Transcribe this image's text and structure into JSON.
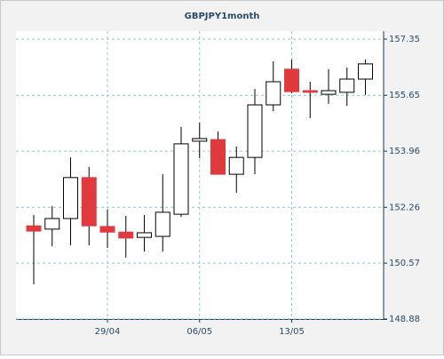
{
  "chart_data": {
    "type": "candlestick",
    "title": "GBPJPY1month",
    "categories": [
      null,
      null,
      null,
      null,
      "29/04",
      null,
      null,
      null,
      null,
      "06/05",
      null,
      null,
      null,
      null,
      "13/05",
      null,
      null,
      null,
      null
    ],
    "open": [
      151.7,
      151.6,
      151.92,
      153.16,
      151.68,
      151.51,
      151.35,
      151.38,
      152.05,
      154.26,
      154.31,
      153.26,
      153.77,
      155.36,
      156.44,
      155.79,
      155.68,
      155.74,
      156.14
    ],
    "high": [
      152.03,
      152.3,
      153.77,
      153.48,
      152.19,
      152.0,
      152.03,
      153.26,
      154.69,
      154.82,
      154.55,
      154.1,
      155.84,
      156.68,
      156.73,
      156.06,
      156.44,
      156.49,
      156.73
    ],
    "low": [
      149.93,
      151.08,
      151.11,
      151.11,
      151.03,
      150.74,
      150.92,
      150.92,
      151.97,
      153.75,
      153.26,
      152.7,
      153.26,
      155.17,
      155.71,
      154.96,
      155.39,
      155.33,
      155.66
    ],
    "close": [
      151.54,
      151.92,
      153.16,
      151.7,
      151.51,
      151.33,
      151.49,
      152.11,
      154.18,
      154.34,
      153.26,
      153.77,
      155.36,
      156.06,
      155.76,
      155.74,
      155.79,
      156.14,
      156.6
    ],
    "up_color": "#ffffff",
    "down_color": "#e0393e",
    "ylim": [
      148.88,
      157.35
    ],
    "yticks": [
      148.88,
      150.57,
      152.26,
      153.96,
      155.65,
      157.35
    ],
    "grid": true
  }
}
